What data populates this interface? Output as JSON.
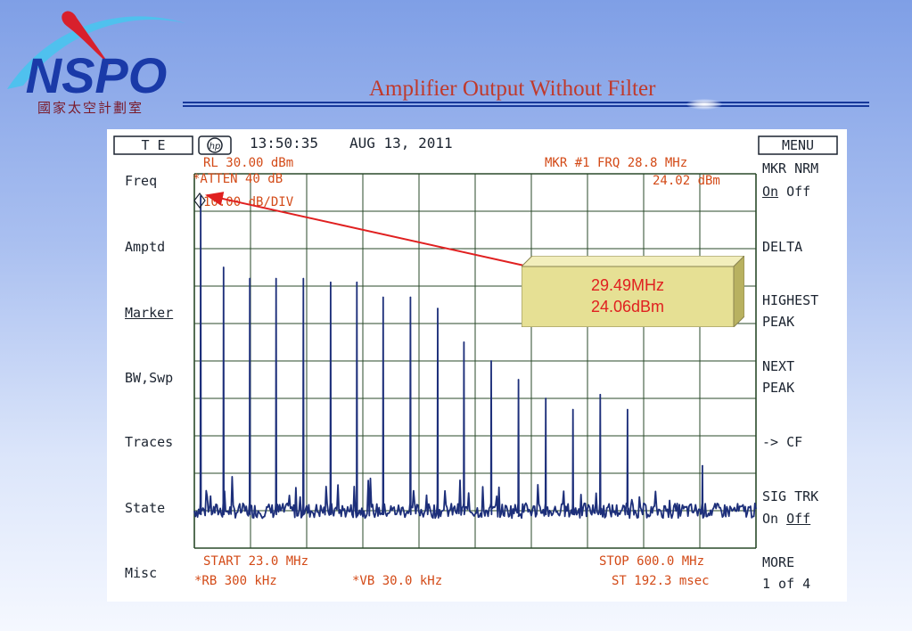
{
  "slide": {
    "title": "Amplifier Output Without Filter",
    "logo_text": "NSPO",
    "logo_subtitle": "國家太空計劃室",
    "colors": {
      "title": "#c0392b",
      "logo_blue": "#1a3aa8",
      "logo_red": "#d8202c",
      "trace": "#1d2f7a",
      "analyzer_text": "#d34a17",
      "callout_fill": "#e6e094"
    }
  },
  "analyzer": {
    "mode_box": "T E",
    "hp_logo": "hp",
    "time": "13:50:35",
    "date": "AUG 13, 2011",
    "menu_box": "MENU",
    "rl": "RL 30.00 dBm",
    "atten": "*ATTEN 40 dB",
    "scale": "10.00 dB/DIV",
    "mkr": "MKR #1 FRQ 28.8 MHz",
    "mkr_level": "24.02 dBm",
    "start": "START  23.0 MHz",
    "stop": "STOP 600.0 MHz",
    "rb": "*RB 300 kHz",
    "vb": "*VB 30.0 kHz",
    "st": "ST 192.3 msec",
    "left_menu": [
      "Freq",
      "Amptd",
      "Marker",
      "BW,Swp",
      "Traces",
      "State",
      "Misc"
    ],
    "right_menu": {
      "mkr_nrm": "MKR NRM",
      "mkr_on": "On",
      "mkr_off": "Off",
      "delta": "DELTA",
      "highest": "HIGHEST",
      "highest_peak": "PEAK",
      "next": "NEXT",
      "next_peak": "PEAK",
      "cf": "-> CF",
      "sig_trk": "SIG TRK",
      "sig_on": "On",
      "sig_off": "Off",
      "more": "MORE",
      "more_page": "1 of 4"
    }
  },
  "callout": {
    "line1": "29.49MHz",
    "line2": "24.06dBm"
  },
  "chart_data": {
    "type": "line",
    "x_unit": "MHz",
    "y_unit": "dBm",
    "xlim": [
      23.0,
      600.0
    ],
    "ylim": [
      -70,
      30
    ],
    "grid": true,
    "noise_floor": -60,
    "peaks": [
      {
        "x": 29.5,
        "y": 24.06
      },
      {
        "x": 53.0,
        "y": 5
      },
      {
        "x": 80.0,
        "y": 2
      },
      {
        "x": 107.0,
        "y": 2
      },
      {
        "x": 135.0,
        "y": 2
      },
      {
        "x": 163.0,
        "y": 1
      },
      {
        "x": 190.0,
        "y": 1
      },
      {
        "x": 217.0,
        "y": -3
      },
      {
        "x": 245.0,
        "y": -3
      },
      {
        "x": 273.0,
        "y": -6
      },
      {
        "x": 300.0,
        "y": -15
      },
      {
        "x": 328.0,
        "y": -20
      },
      {
        "x": 356.0,
        "y": -25
      },
      {
        "x": 384.0,
        "y": -30
      },
      {
        "x": 412.0,
        "y": -33
      },
      {
        "x": 440.0,
        "y": -29
      },
      {
        "x": 468.0,
        "y": -33
      },
      {
        "x": 545.0,
        "y": -48
      }
    ]
  }
}
